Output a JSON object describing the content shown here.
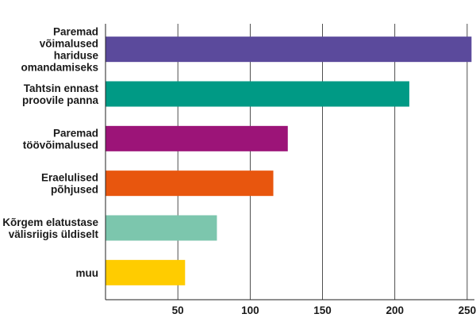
{
  "chart_data": {
    "type": "bar",
    "orientation": "horizontal",
    "title": "",
    "xlabel": "",
    "ylabel": "",
    "categories": [
      [
        "Paremad",
        "võimalused",
        "hariduse",
        "omandamiseks"
      ],
      [
        "Tahtsin ennast",
        "proovile panna"
      ],
      [
        "Paremad",
        "töövõimalused"
      ],
      [
        "Eraelulised",
        "põhjused"
      ],
      [
        "Kõrgem elatustase",
        "välisriigis üldiselt"
      ],
      [
        "muu"
      ]
    ],
    "values": [
      253,
      210,
      126,
      116,
      77,
      55
    ],
    "colors": [
      "#5b4a9c",
      "#009a85",
      "#9c1478",
      "#e8560e",
      "#7cc6ad",
      "#ffcc00"
    ],
    "xlim": [
      0,
      255
    ],
    "xticks": [
      50,
      100,
      150,
      200,
      250
    ],
    "grid": "vertical"
  }
}
